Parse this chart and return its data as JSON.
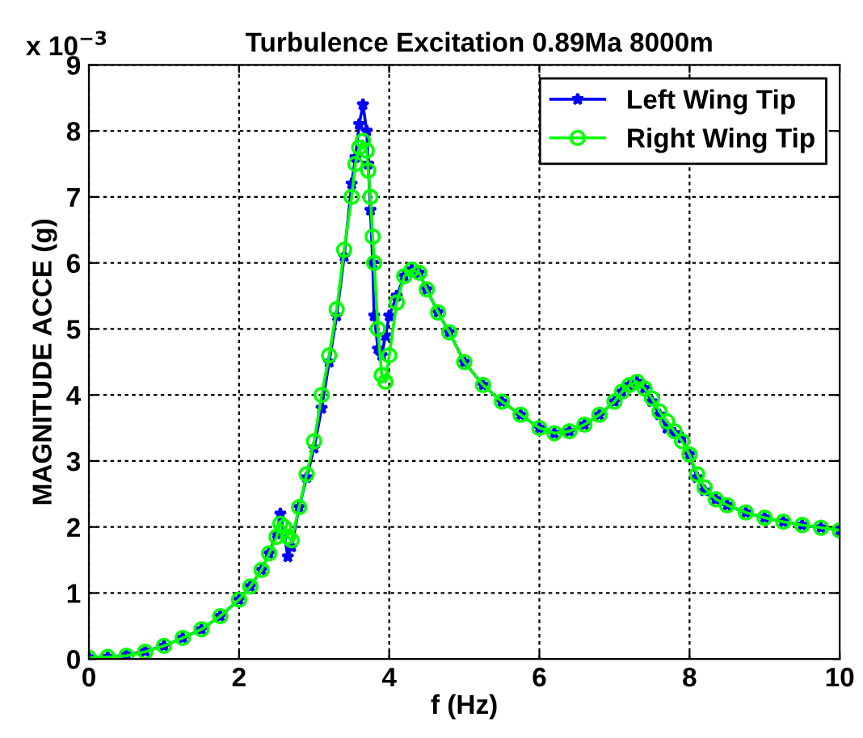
{
  "chart_data": {
    "type": "line",
    "title": "Turbulence Excitation 0.89Ma 8000m",
    "xlabel": "f (Hz)",
    "ylabel": "MAGNITUDE ACCE (g)",
    "annotations": [
      "x 10$^{−3}$"
    ],
    "xlim": [
      0,
      10
    ],
    "xticks": [
      0,
      2,
      4,
      6,
      8,
      10
    ],
    "ylim": [
      0,
      9
    ],
    "yticks": [
      0,
      1,
      2,
      3,
      4,
      5,
      6,
      7,
      8,
      9
    ],
    "grid": true,
    "legend": "top right",
    "line_style": "solid",
    "series": [
      {
        "name": "Left Wing Tip",
        "color": "#0000ff",
        "marker": "star",
        "x": [
          0,
          0.25,
          0.5,
          0.75,
          1.0,
          1.25,
          1.5,
          1.75,
          2.0,
          2.15,
          2.3,
          2.4,
          2.5,
          2.55,
          2.6,
          2.65,
          2.7,
          2.8,
          2.9,
          3.0,
          3.1,
          3.2,
          3.3,
          3.4,
          3.5,
          3.55,
          3.6,
          3.65,
          3.7,
          3.72,
          3.75,
          3.78,
          3.8,
          3.85,
          3.9,
          3.95,
          4.0,
          4.1,
          4.2,
          4.3,
          4.4,
          4.5,
          4.65,
          4.8,
          5.0,
          5.25,
          5.5,
          5.75,
          6.0,
          6.2,
          6.4,
          6.6,
          6.8,
          7.0,
          7.1,
          7.2,
          7.3,
          7.4,
          7.5,
          7.6,
          7.7,
          7.8,
          7.9,
          8.0,
          8.1,
          8.2,
          8.35,
          8.5,
          8.75,
          9.0,
          9.25,
          9.5,
          9.75,
          10
        ],
        "values": [
          0.02,
          0.03,
          0.06,
          0.12,
          0.2,
          0.32,
          0.45,
          0.65,
          0.9,
          1.1,
          1.35,
          1.6,
          1.9,
          2.2,
          1.9,
          1.55,
          1.7,
          2.3,
          2.75,
          3.2,
          3.8,
          4.5,
          5.2,
          6.1,
          7.2,
          7.6,
          8.1,
          8.4,
          8.0,
          7.5,
          6.8,
          6.0,
          5.2,
          4.7,
          4.6,
          4.9,
          5.2,
          5.5,
          5.8,
          5.9,
          5.85,
          5.6,
          5.25,
          4.95,
          4.5,
          4.15,
          3.9,
          3.7,
          3.5,
          3.42,
          3.45,
          3.55,
          3.7,
          3.9,
          4.05,
          4.15,
          4.2,
          4.1,
          3.9,
          3.7,
          3.5,
          3.42,
          3.35,
          3.1,
          2.75,
          2.55,
          2.42,
          2.33,
          2.22,
          2.14,
          2.08,
          2.03,
          1.99,
          1.95
        ]
      },
      {
        "name": "Right Wing Tip",
        "color": "#00ff00",
        "marker": "circle",
        "x": [
          0,
          0.25,
          0.5,
          0.75,
          1.0,
          1.25,
          1.5,
          1.75,
          2.0,
          2.15,
          2.3,
          2.4,
          2.5,
          2.55,
          2.6,
          2.65,
          2.7,
          2.8,
          2.9,
          3.0,
          3.1,
          3.2,
          3.3,
          3.4,
          3.5,
          3.55,
          3.6,
          3.65,
          3.7,
          3.72,
          3.75,
          3.78,
          3.8,
          3.85,
          3.9,
          3.95,
          4.0,
          4.1,
          4.2,
          4.3,
          4.4,
          4.5,
          4.65,
          4.8,
          5.0,
          5.25,
          5.5,
          5.75,
          6.0,
          6.2,
          6.4,
          6.6,
          6.8,
          7.0,
          7.1,
          7.2,
          7.3,
          7.4,
          7.5,
          7.6,
          7.7,
          7.8,
          7.9,
          8.0,
          8.1,
          8.2,
          8.35,
          8.5,
          8.75,
          9.0,
          9.25,
          9.5,
          9.75,
          10
        ],
        "values": [
          0.02,
          0.03,
          0.05,
          0.11,
          0.2,
          0.32,
          0.45,
          0.65,
          0.9,
          1.1,
          1.35,
          1.6,
          1.85,
          2.05,
          2.0,
          1.85,
          1.8,
          2.3,
          2.8,
          3.3,
          4.0,
          4.6,
          5.3,
          6.2,
          7.0,
          7.5,
          7.75,
          7.85,
          7.7,
          7.4,
          7.0,
          6.4,
          6.0,
          5.0,
          4.3,
          4.2,
          4.6,
          5.4,
          5.8,
          5.9,
          5.85,
          5.6,
          5.25,
          4.95,
          4.5,
          4.15,
          3.9,
          3.7,
          3.5,
          3.42,
          3.45,
          3.55,
          3.7,
          3.9,
          4.05,
          4.15,
          4.2,
          4.1,
          3.95,
          3.75,
          3.6,
          3.45,
          3.3,
          3.1,
          2.8,
          2.6,
          2.42,
          2.33,
          2.22,
          2.14,
          2.08,
          2.03,
          1.99,
          1.95
        ]
      }
    ]
  }
}
